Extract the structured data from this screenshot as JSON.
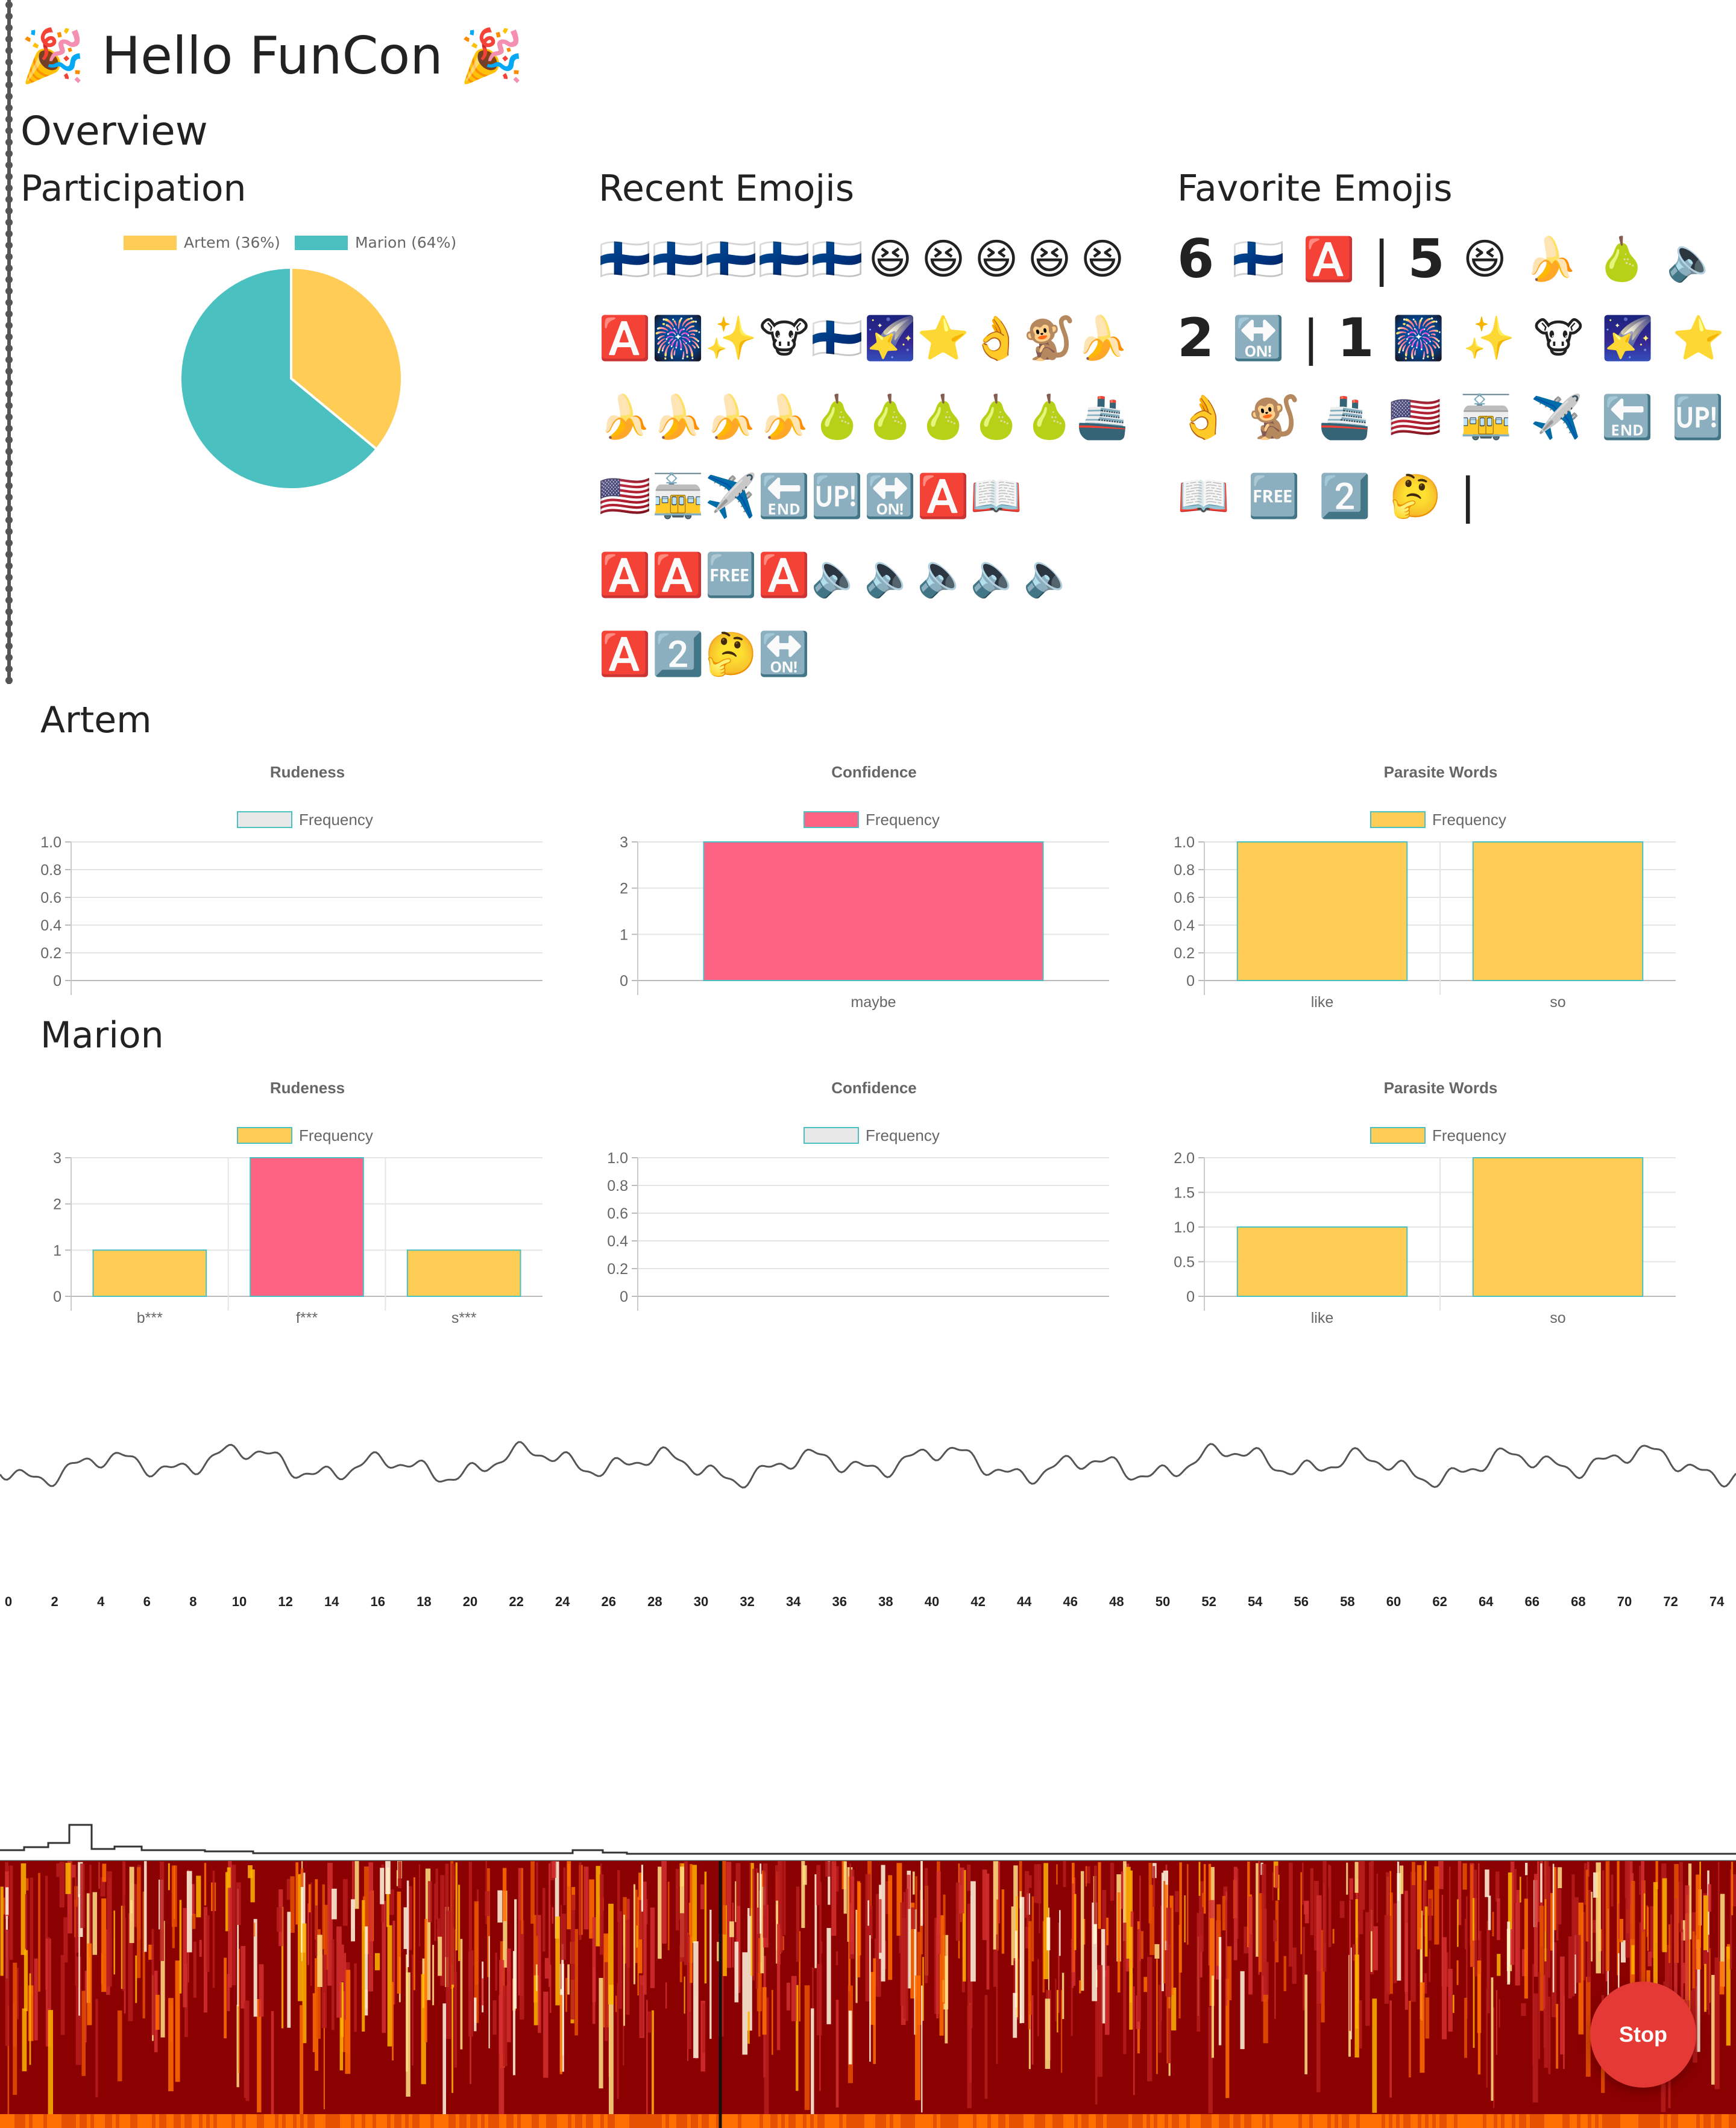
{
  "header": {
    "title_left_icon": "🎉",
    "title": "Hello FunCon",
    "title_right_icon": "🎉"
  },
  "overview": {
    "title": "Overview",
    "participation": {
      "title": "Participation",
      "chart_data": {
        "type": "pie",
        "labels": [
          "Artem (36%)",
          "Marion (64%)"
        ],
        "values": [
          36,
          64
        ],
        "colors": [
          "#ffcd56",
          "#4bc0c0"
        ],
        "legend_position": "top"
      }
    },
    "recent": {
      "title": "Recent Emojis",
      "rows": [
        [
          "🇫🇮",
          "🇫🇮",
          "🇫🇮",
          "🇫🇮",
          "🇫🇮",
          "😆",
          "😆",
          "😆",
          "😆",
          "😆"
        ],
        [
          "🅰️",
          "🎆",
          "✨",
          "🐮",
          "🇫🇮",
          "🌠",
          "⭐",
          "👌",
          "🐒",
          "🍌"
        ],
        [
          "🍌",
          "🍌",
          "🍌",
          "🍌",
          "🍐",
          "🍐",
          "🍐",
          "🍐",
          "🍐",
          "🚢"
        ],
        [
          "🇺🇸",
          "🚋",
          "✈️",
          "🔚",
          "🆙",
          "🔛",
          "🅰️",
          "📖"
        ],
        [
          "🅰️",
          "🅰️",
          "🆓",
          "🅰️",
          "🔈",
          "🔈",
          "🔈",
          "🔈",
          "🔈"
        ],
        [
          "🅰️",
          "2️⃣",
          "🤔",
          "🔛"
        ]
      ]
    },
    "favorite": {
      "title": "Favorite Emojis",
      "rows": [
        [
          {
            "n": "6"
          },
          {
            "e": "🇫🇮"
          },
          {
            "e": "🅰️"
          },
          {
            "s": "|"
          },
          {
            "n": "5"
          },
          {
            "e": "😆"
          },
          {
            "e": "🍌"
          },
          {
            "e": "🍐"
          },
          {
            "e": "🔈"
          },
          {
            "s": "|"
          }
        ],
        [
          {
            "n": "2"
          },
          {
            "e": "🔛"
          },
          {
            "s": "|"
          },
          {
            "n": "1"
          },
          {
            "e": "🎆"
          },
          {
            "e": "✨"
          },
          {
            "e": "🐮"
          },
          {
            "e": "🌠"
          },
          {
            "e": "⭐"
          }
        ],
        [
          {
            "e": "👌"
          },
          {
            "e": "🐒"
          },
          {
            "e": "🚢"
          },
          {
            "e": "🇺🇸"
          },
          {
            "e": "🚋"
          },
          {
            "e": "✈️"
          },
          {
            "e": "🔚"
          },
          {
            "e": "🆙"
          }
        ],
        [
          {
            "e": "📖"
          },
          {
            "e": "🆓"
          },
          {
            "e": "2️⃣"
          },
          {
            "e": "🤔"
          },
          {
            "s": "|"
          }
        ]
      ]
    }
  },
  "artem": {
    "name": "Artem",
    "charts": [
      {
        "type": "bar",
        "title": "Rudeness",
        "legend": "Frequency",
        "legend_color": "#e8e8e8",
        "categories": [],
        "values": [],
        "colors": [],
        "ylim": [
          0,
          1
        ],
        "yticks": [
          "1.0",
          "0.8",
          "0.6",
          "0.4",
          "0.2",
          "0"
        ]
      },
      {
        "type": "bar",
        "title": "Confidence",
        "legend": "Frequency",
        "legend_color": "#ff6384",
        "categories": [
          "maybe"
        ],
        "values": [
          3
        ],
        "colors": [
          "#ff6384"
        ],
        "ylim": [
          0,
          3
        ],
        "yticks": [
          "3",
          "2",
          "1",
          "0"
        ]
      },
      {
        "type": "bar",
        "title": "Parasite Words",
        "legend": "Frequency",
        "legend_color": "#ffcd56",
        "categories": [
          "like",
          "so"
        ],
        "values": [
          1,
          1
        ],
        "colors": [
          "#ffcd56",
          "#ffcd56"
        ],
        "ylim": [
          0,
          1
        ],
        "yticks": [
          "1.0",
          "0.8",
          "0.6",
          "0.4",
          "0.2",
          "0"
        ]
      }
    ]
  },
  "marion": {
    "name": "Marion",
    "charts": [
      {
        "type": "bar",
        "title": "Rudeness",
        "legend": "Frequency",
        "legend_color": "#ffcd56",
        "categories": [
          "b***",
          "f***",
          "s***"
        ],
        "values": [
          1,
          3,
          1
        ],
        "colors": [
          "#ffcd56",
          "#ff6384",
          "#ffcd56"
        ],
        "ylim": [
          0,
          3
        ],
        "yticks": [
          "3",
          "2",
          "1",
          "0"
        ]
      },
      {
        "type": "bar",
        "title": "Confidence",
        "legend": "Frequency",
        "legend_color": "#e8e8e8",
        "categories": [],
        "values": [],
        "colors": [],
        "ylim": [
          0,
          1
        ],
        "yticks": [
          "1.0",
          "0.8",
          "0.6",
          "0.4",
          "0.2",
          "0"
        ]
      },
      {
        "type": "bar",
        "title": "Parasite Words",
        "legend": "Frequency",
        "legend_color": "#ffcd56",
        "categories": [
          "like",
          "so"
        ],
        "values": [
          1,
          2
        ],
        "colors": [
          "#ffcd56",
          "#ffcd56"
        ],
        "ylim": [
          0,
          2
        ],
        "yticks": [
          "2.0",
          "1.5",
          "1.0",
          "0.5",
          "0"
        ]
      }
    ]
  },
  "timeline": {
    "ticks": [
      "0",
      "2",
      "4",
      "6",
      "8",
      "10",
      "12",
      "14",
      "16",
      "18",
      "20",
      "22",
      "24",
      "26",
      "28",
      "30",
      "32",
      "34",
      "36",
      "38",
      "40",
      "42",
      "44",
      "46",
      "48",
      "50",
      "52",
      "54",
      "56",
      "58",
      "60",
      "62",
      "64",
      "66",
      "68",
      "70",
      "72",
      "74"
    ]
  },
  "controls": {
    "stop_label": "Stop"
  },
  "colors": {
    "pie_yellow": "#ffcd56",
    "pie_teal": "#4bc0c0",
    "bar_pink": "#ff6384",
    "spectrogram_base": "#8b0000",
    "stop_button": "#e53935"
  }
}
